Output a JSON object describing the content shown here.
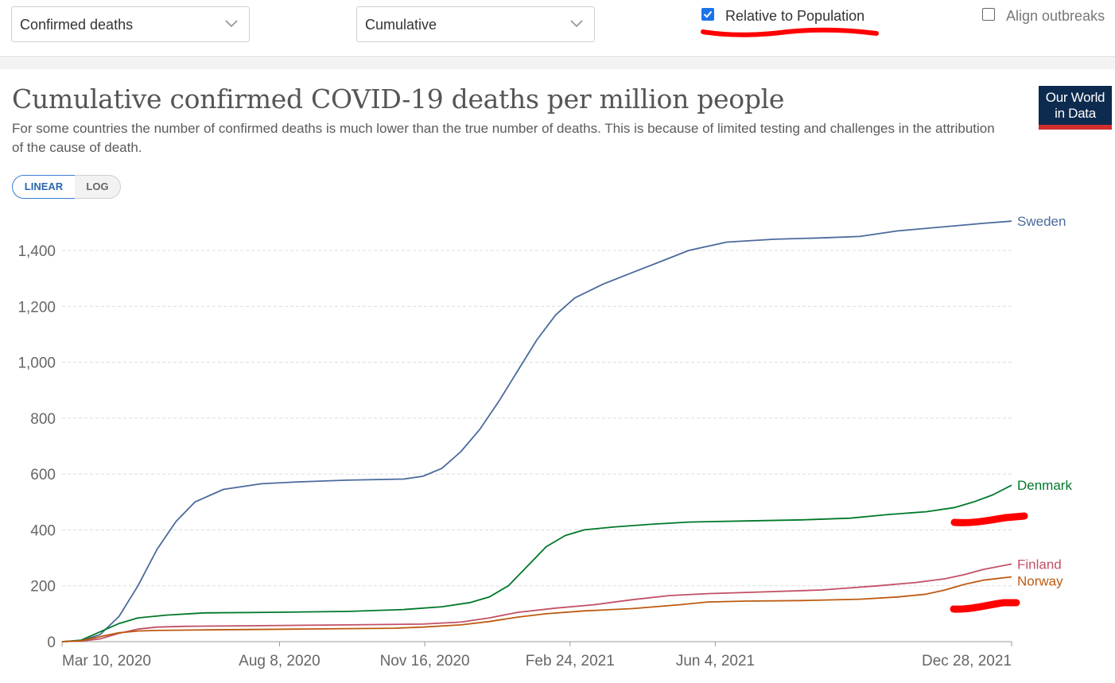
{
  "controls": {
    "metric_select": "Confirmed deaths",
    "interval_select": "Cumulative",
    "relative_to_population": {
      "label": "Relative to Population",
      "checked": true
    },
    "align_outbreaks": {
      "label": "Align outbreaks",
      "checked": false
    }
  },
  "header": {
    "title": "Cumulative confirmed COVID-19 deaths per million people",
    "subtitle": "For some countries the number of confirmed deaths is much lower than the true number of deaths. This is because of limited testing and challenges in the attribution of the cause of death."
  },
  "logo": {
    "line1": "Our World",
    "line2": "in Data"
  },
  "scale_toggle": {
    "linear": "LINEAR",
    "log": "LOG",
    "active": "linear"
  },
  "colors": {
    "annotation_red": "#ff0000"
  },
  "chart_data": {
    "type": "line",
    "y_ticks": [
      "0",
      "200",
      "400",
      "600",
      "800",
      "1,000",
      "1,200",
      "1,400"
    ],
    "ylim": [
      0,
      1400
    ],
    "x_ticks": [
      "Mar 10, 2020",
      "Aug 8, 2020",
      "Nov 16, 2020",
      "Feb 24, 2021",
      "Jun 4, 2021",
      "Dec 28, 2021"
    ],
    "grid": "horizontal dashed",
    "series": [
      {
        "name": "Sweden",
        "color": "#4c6a9c",
        "points": [
          [
            0,
            0
          ],
          [
            0.02,
            3
          ],
          [
            0.04,
            25
          ],
          [
            0.06,
            90
          ],
          [
            0.08,
            200
          ],
          [
            0.1,
            330
          ],
          [
            0.12,
            430
          ],
          [
            0.14,
            500
          ],
          [
            0.17,
            545
          ],
          [
            0.21,
            565
          ],
          [
            0.25,
            572
          ],
          [
            0.3,
            578
          ],
          [
            0.36,
            582
          ],
          [
            0.38,
            592
          ],
          [
            0.4,
            620
          ],
          [
            0.42,
            680
          ],
          [
            0.44,
            760
          ],
          [
            0.46,
            860
          ],
          [
            0.48,
            970
          ],
          [
            0.5,
            1080
          ],
          [
            0.52,
            1170
          ],
          [
            0.54,
            1230
          ],
          [
            0.57,
            1280
          ],
          [
            0.6,
            1320
          ],
          [
            0.63,
            1360
          ],
          [
            0.66,
            1400
          ],
          [
            0.7,
            1430
          ],
          [
            0.75,
            1440
          ],
          [
            0.8,
            1445
          ],
          [
            0.84,
            1450
          ],
          [
            0.88,
            1470
          ],
          [
            0.93,
            1485
          ],
          [
            0.97,
            1497
          ],
          [
            1.0,
            1505
          ]
        ]
      },
      {
        "name": "Denmark",
        "color": "#00782a",
        "points": [
          [
            0,
            0
          ],
          [
            0.02,
            5
          ],
          [
            0.04,
            35
          ],
          [
            0.06,
            65
          ],
          [
            0.08,
            85
          ],
          [
            0.11,
            95
          ],
          [
            0.15,
            103
          ],
          [
            0.22,
            105
          ],
          [
            0.3,
            108
          ],
          [
            0.36,
            115
          ],
          [
            0.4,
            125
          ],
          [
            0.43,
            140
          ],
          [
            0.45,
            160
          ],
          [
            0.47,
            200
          ],
          [
            0.49,
            270
          ],
          [
            0.51,
            340
          ],
          [
            0.53,
            380
          ],
          [
            0.55,
            400
          ],
          [
            0.58,
            410
          ],
          [
            0.62,
            420
          ],
          [
            0.66,
            428
          ],
          [
            0.72,
            432
          ],
          [
            0.78,
            436
          ],
          [
            0.83,
            442
          ],
          [
            0.87,
            455
          ],
          [
            0.91,
            465
          ],
          [
            0.94,
            480
          ],
          [
            0.96,
            500
          ],
          [
            0.98,
            525
          ],
          [
            1.0,
            560
          ]
        ]
      },
      {
        "name": "Finland",
        "color": "#c15065",
        "points": [
          [
            0,
            0
          ],
          [
            0.02,
            2
          ],
          [
            0.04,
            10
          ],
          [
            0.06,
            30
          ],
          [
            0.08,
            45
          ],
          [
            0.1,
            52
          ],
          [
            0.13,
            55
          ],
          [
            0.2,
            57
          ],
          [
            0.3,
            60
          ],
          [
            0.38,
            63
          ],
          [
            0.42,
            70
          ],
          [
            0.45,
            85
          ],
          [
            0.48,
            105
          ],
          [
            0.52,
            120
          ],
          [
            0.56,
            132
          ],
          [
            0.6,
            150
          ],
          [
            0.64,
            165
          ],
          [
            0.68,
            172
          ],
          [
            0.74,
            178
          ],
          [
            0.8,
            185
          ],
          [
            0.86,
            200
          ],
          [
            0.9,
            212
          ],
          [
            0.93,
            225
          ],
          [
            0.95,
            240
          ],
          [
            0.97,
            258
          ],
          [
            1.0,
            278
          ]
        ]
      },
      {
        "name": "Norway",
        "color": "#bd5a10",
        "points": [
          [
            0,
            0
          ],
          [
            0.02,
            3
          ],
          [
            0.04,
            18
          ],
          [
            0.06,
            32
          ],
          [
            0.08,
            38
          ],
          [
            0.1,
            40
          ],
          [
            0.15,
            42
          ],
          [
            0.25,
            45
          ],
          [
            0.35,
            48
          ],
          [
            0.38,
            52
          ],
          [
            0.42,
            60
          ],
          [
            0.45,
            72
          ],
          [
            0.48,
            88
          ],
          [
            0.51,
            100
          ],
          [
            0.55,
            110
          ],
          [
            0.6,
            118
          ],
          [
            0.65,
            132
          ],
          [
            0.68,
            142
          ],
          [
            0.72,
            145
          ],
          [
            0.78,
            147
          ],
          [
            0.84,
            152
          ],
          [
            0.88,
            160
          ],
          [
            0.91,
            170
          ],
          [
            0.93,
            185
          ],
          [
            0.95,
            205
          ],
          [
            0.97,
            220
          ],
          [
            1.0,
            232
          ]
        ]
      }
    ]
  }
}
